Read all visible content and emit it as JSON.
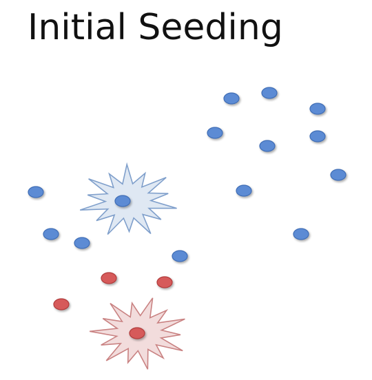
{
  "title": "Initial Seeding",
  "colors": {
    "blue_point_fill": "#5b8bd4",
    "blue_point_stroke": "#3f6db5",
    "red_point_fill": "#d65a5a",
    "red_point_stroke": "#b03b3b",
    "blue_burst_fill": "#dfe8f3",
    "blue_burst_stroke": "#7f9fcb",
    "red_burst_fill": "#f2dcdc",
    "red_burst_stroke": "#c98282"
  },
  "icons": {
    "blue_seed": "starburst-icon",
    "red_seed": "starburst-icon"
  }
}
